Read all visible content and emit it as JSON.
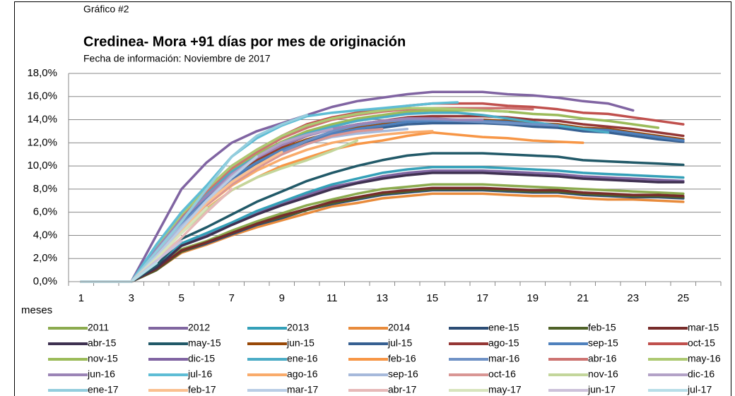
{
  "chart_data": {
    "type": "line",
    "kicker": "Gráfico #2",
    "title": "Credinea- Mora +91 días por mes de originación",
    "subtitle": "Fecha de información: Noviembre de 2017",
    "x_label": "meses",
    "categories": [
      1,
      null,
      3,
      null,
      5,
      null,
      7,
      null,
      9,
      null,
      11,
      null,
      13,
      null,
      15,
      null,
      17,
      null,
      19,
      null,
      21,
      null,
      23,
      null,
      25,
      null
    ],
    "ylim": [
      0,
      18
    ],
    "yticks": [
      {
        "value": 0,
        "label": "0,0%"
      },
      {
        "value": 2,
        "label": "2,0%"
      },
      {
        "value": 4,
        "label": "4,0%"
      },
      {
        "value": 6,
        "label": "6,0%"
      },
      {
        "value": 8,
        "label": "8,0%"
      },
      {
        "value": 10,
        "label": "10,0%"
      },
      {
        "value": 12,
        "label": "12,0%"
      },
      {
        "value": 14,
        "label": "14,0%"
      },
      {
        "value": 16,
        "label": "16,0%"
      },
      {
        "value": 18,
        "label": "18,0%"
      }
    ],
    "grid": true,
    "legend": "bottom",
    "series": [
      {
        "name": "2011",
        "color": "#8cab4f",
        "values": [
          0,
          0,
          0,
          1.1,
          2.8,
          3.5,
          4.4,
          5.2,
          5.9,
          6.6,
          7.1,
          7.6,
          8.0,
          8.2,
          8.4,
          8.4,
          8.4,
          8.3,
          8.2,
          8.1,
          8.0,
          7.9,
          7.8,
          7.7,
          7.6,
          null
        ]
      },
      {
        "name": "2012",
        "color": "#8066a0",
        "values": [
          0,
          0,
          0,
          1.2,
          3.2,
          4.0,
          5.0,
          6.0,
          6.7,
          7.5,
          8.2,
          8.6,
          9.1,
          9.4,
          9.6,
          9.6,
          9.6,
          9.5,
          9.4,
          9.3,
          9.1,
          9.0,
          8.9,
          8.8,
          8.7,
          null
        ]
      },
      {
        "name": "2013",
        "color": "#34a0b8",
        "values": [
          0,
          0,
          0,
          1.3,
          3.3,
          4.2,
          5.1,
          6.1,
          6.9,
          7.7,
          8.4,
          8.9,
          9.4,
          9.7,
          9.9,
          9.9,
          9.9,
          9.8,
          9.7,
          9.6,
          9.4,
          9.3,
          9.2,
          9.1,
          9.0,
          null
        ]
      },
      {
        "name": "2014",
        "color": "#e88b3c",
        "values": [
          0,
          0,
          0,
          1.0,
          2.5,
          3.2,
          4.0,
          4.7,
          5.3,
          5.9,
          6.5,
          6.8,
          7.2,
          7.4,
          7.6,
          7.6,
          7.6,
          7.5,
          7.4,
          7.4,
          7.2,
          7.1,
          7.1,
          7.0,
          6.9,
          null
        ]
      },
      {
        "name": "ene-15",
        "color": "#2c4d75",
        "values": [
          0,
          0,
          0,
          1.0,
          2.6,
          3.3,
          4.1,
          4.9,
          5.5,
          6.2,
          6.7,
          7.1,
          7.5,
          7.7,
          7.9,
          7.9,
          7.9,
          7.8,
          7.7,
          7.7,
          7.5,
          7.4,
          7.3,
          7.3,
          7.2,
          null
        ]
      },
      {
        "name": "feb-15",
        "color": "#4f6228",
        "values": [
          0,
          0,
          0,
          1.0,
          2.6,
          3.4,
          4.2,
          5.0,
          5.6,
          6.2,
          6.8,
          7.2,
          7.6,
          7.8,
          8.0,
          8.0,
          8.0,
          7.9,
          7.8,
          7.8,
          7.6,
          7.5,
          7.4,
          7.4,
          7.3,
          null
        ]
      },
      {
        "name": "mar-15",
        "color": "#772c2a",
        "values": [
          0,
          0,
          0,
          1.1,
          2.7,
          3.4,
          4.2,
          5.0,
          5.7,
          6.3,
          6.9,
          7.3,
          7.7,
          7.9,
          8.1,
          8.1,
          8.1,
          8.0,
          7.9,
          7.9,
          7.7,
          7.6,
          7.5,
          7.5,
          7.4,
          null
        ]
      },
      {
        "name": "abr-15",
        "color": "#3f3151",
        "values": [
          0,
          0,
          0,
          1.2,
          3.1,
          3.9,
          4.9,
          5.8,
          6.6,
          7.3,
          8.0,
          8.5,
          8.9,
          9.2,
          9.4,
          9.4,
          9.4,
          9.3,
          9.2,
          9.1,
          8.9,
          8.8,
          8.7,
          8.6,
          8.6,
          null
        ]
      },
      {
        "name": "may-15",
        "color": "#215968",
        "values": [
          0,
          0,
          0,
          1.4,
          3.7,
          4.7,
          5.8,
          6.9,
          7.8,
          8.7,
          9.4,
          10.0,
          10.5,
          10.9,
          11.1,
          11.1,
          11.1,
          11.0,
          10.9,
          10.8,
          10.5,
          10.4,
          10.3,
          10.2,
          10.1,
          null
        ]
      },
      {
        "name": "jun-15",
        "color": "#984807",
        "values": [
          0,
          0,
          0,
          2.8,
          5.3,
          7.3,
          9.1,
          10.4,
          11.5,
          12.3,
          12.9,
          13.3,
          13.6,
          13.9,
          14.0,
          14.0,
          14.0,
          13.9,
          13.7,
          13.6,
          13.3,
          13.2,
          12.9,
          12.6,
          12.3,
          null
        ]
      },
      {
        "name": "jul-15",
        "color": "#376092",
        "values": [
          0,
          0,
          0,
          2.7,
          5.2,
          7.1,
          8.9,
          10.1,
          11.2,
          12.1,
          12.6,
          13.0,
          13.3,
          13.6,
          13.7,
          13.7,
          13.7,
          13.6,
          13.4,
          13.3,
          13.0,
          12.9,
          12.6,
          12.3,
          12.1,
          null
        ]
      },
      {
        "name": "ago-15",
        "color": "#953735",
        "values": [
          0,
          0,
          0,
          2.9,
          5.4,
          7.4,
          9.3,
          10.6,
          11.7,
          12.6,
          13.2,
          13.6,
          13.9,
          14.2,
          14.3,
          14.3,
          14.3,
          14.2,
          14.0,
          13.9,
          13.6,
          13.4,
          13.2,
          12.9,
          12.6,
          null
        ]
      },
      {
        "name": "sep-15",
        "color": "#4f81bd",
        "values": [
          0,
          0,
          0,
          2.8,
          5.3,
          7.2,
          9.0,
          10.3,
          11.4,
          12.2,
          12.8,
          13.2,
          13.5,
          13.8,
          13.9,
          13.9,
          13.9,
          13.8,
          13.6,
          13.5,
          13.2,
          13.1,
          12.8,
          12.5,
          12.2,
          null
        ]
      },
      {
        "name": "oct-15",
        "color": "#c0504d",
        "values": [
          0,
          0,
          0,
          3.1,
          5.9,
          8.0,
          10.0,
          11.4,
          12.6,
          13.6,
          14.2,
          14.6,
          14.9,
          15.2,
          15.4,
          15.4,
          15.4,
          15.2,
          15.1,
          14.9,
          14.6,
          14.5,
          14.2,
          13.9,
          13.6,
          null
        ]
      },
      {
        "name": "nov-15",
        "color": "#9bbb59",
        "values": [
          0,
          0,
          0,
          3.0,
          5.6,
          7.7,
          9.6,
          11.0,
          12.1,
          13.0,
          13.6,
          14.1,
          14.4,
          14.7,
          14.8,
          14.8,
          14.8,
          14.7,
          14.5,
          14.4,
          14.1,
          13.9,
          13.6,
          13.3,
          null,
          null
        ]
      },
      {
        "name": "dic-15",
        "color": "#8064a2",
        "values": [
          0,
          0,
          0,
          4.0,
          8.0,
          10.3,
          12.0,
          13.0,
          13.7,
          14.4,
          15.1,
          15.6,
          15.9,
          16.2,
          16.4,
          16.4,
          16.4,
          16.2,
          16.1,
          15.9,
          15.6,
          15.4,
          14.8,
          null,
          null,
          null
        ]
      },
      {
        "name": "ene-16",
        "color": "#4bacc6",
        "values": [
          0,
          0,
          0,
          2.9,
          5.5,
          7.6,
          9.5,
          10.8,
          12.0,
          12.8,
          13.4,
          13.9,
          14.2,
          14.5,
          14.6,
          14.6,
          14.4,
          14.1,
          13.8,
          13.5,
          13.2,
          12.9,
          null,
          null,
          null,
          null
        ]
      },
      {
        "name": "feb-16",
        "color": "#f79646",
        "values": [
          0,
          0,
          0,
          2.2,
          4.5,
          6.3,
          7.9,
          9.0,
          10.0,
          10.7,
          11.4,
          11.9,
          12.2,
          12.6,
          12.9,
          12.7,
          12.5,
          12.4,
          12.2,
          12.1,
          12.0,
          null,
          null,
          null,
          null,
          null
        ]
      },
      {
        "name": "mar-16",
        "color": "#6f92c6",
        "values": [
          0,
          0,
          0,
          2.6,
          5.0,
          7.0,
          8.7,
          10.0,
          11.2,
          12.2,
          13.0,
          13.5,
          13.8,
          14.0,
          14.0,
          13.9,
          13.8,
          13.7,
          13.6,
          13.5,
          null,
          null,
          null,
          null,
          null,
          null
        ]
      },
      {
        "name": "abr-16",
        "color": "#cd7371",
        "values": [
          0,
          0,
          0,
          3.0,
          5.7,
          7.8,
          9.8,
          11.2,
          12.4,
          13.3,
          14.0,
          14.4,
          14.7,
          14.9,
          15.0,
          15.0,
          15.0,
          15.0,
          14.9,
          null,
          null,
          null,
          null,
          null,
          null,
          null
        ]
      },
      {
        "name": "may-16",
        "color": "#adc972",
        "values": [
          0,
          0,
          0,
          3.0,
          5.8,
          8.0,
          10.0,
          11.4,
          12.6,
          13.5,
          14.1,
          14.5,
          14.8,
          15.0,
          15.0,
          14.9,
          14.8,
          14.7,
          null,
          null,
          null,
          null,
          null,
          null,
          null,
          null
        ]
      },
      {
        "name": "jun-16",
        "color": "#9b84b6",
        "values": [
          0,
          0,
          0,
          2.8,
          5.4,
          7.4,
          9.3,
          10.7,
          11.8,
          12.6,
          13.2,
          13.6,
          13.9,
          14.1,
          14.1,
          14.0,
          14.0,
          null,
          null,
          null,
          null,
          null,
          null,
          null,
          null,
          null
        ]
      },
      {
        "name": "jul-16",
        "color": "#5ebdd5",
        "values": [
          0,
          0,
          0,
          3.2,
          6.0,
          8.3,
          10.8,
          12.4,
          13.5,
          14.3,
          14.6,
          14.8,
          15.0,
          15.2,
          15.4,
          15.5,
          null,
          null,
          null,
          null,
          null,
          null,
          null,
          null,
          null,
          null
        ]
      },
      {
        "name": "ago-16",
        "color": "#f9ab6b",
        "values": [
          0,
          0,
          0,
          2.4,
          4.7,
          6.6,
          8.3,
          9.6,
          10.6,
          11.4,
          12.0,
          12.4,
          12.7,
          12.9,
          13.0,
          null,
          null,
          null,
          null,
          null,
          null,
          null,
          null,
          null,
          null,
          null
        ]
      },
      {
        "name": "sep-16",
        "color": "#a6b9db",
        "values": [
          0,
          0,
          0,
          2.5,
          4.8,
          6.8,
          8.6,
          10.0,
          11.0,
          11.9,
          12.5,
          12.8,
          13.0,
          13.2,
          null,
          null,
          null,
          null,
          null,
          null,
          null,
          null,
          null,
          null,
          null,
          null
        ]
      },
      {
        "name": "oct-16",
        "color": "#d99694",
        "values": [
          0,
          0,
          0,
          2.2,
          4.6,
          6.6,
          8.4,
          9.8,
          11.0,
          11.9,
          12.6,
          13.0,
          13.2,
          null,
          null,
          null,
          null,
          null,
          null,
          null,
          null,
          null,
          null,
          null,
          null,
          null
        ]
      },
      {
        "name": "nov-16",
        "color": "#c3d69b",
        "values": [
          0,
          0,
          0,
          2.0,
          4.2,
          6.2,
          7.9,
          9.0,
          9.8,
          10.5,
          11.3,
          12.2,
          null,
          null,
          null,
          null,
          null,
          null,
          null,
          null,
          null,
          null,
          null,
          null,
          null,
          null
        ]
      },
      {
        "name": "dic-16",
        "color": "#b3a2c7",
        "values": [
          0,
          0,
          0,
          2.3,
          4.6,
          7.0,
          9.2,
          10.8,
          12.0,
          12.7,
          13.2,
          null,
          null,
          null,
          null,
          null,
          null,
          null,
          null,
          null,
          null,
          null,
          null,
          null,
          null,
          null
        ]
      },
      {
        "name": "ene-17",
        "color": "#93cddd",
        "values": [
          0,
          0,
          0,
          2.6,
          5.2,
          8.0,
          10.8,
          12.6,
          13.6,
          14.4,
          null,
          null,
          null,
          null,
          null,
          null,
          null,
          null,
          null,
          null,
          null,
          null,
          null,
          null,
          null,
          null
        ]
      },
      {
        "name": "feb-17",
        "color": "#fac090",
        "values": [
          0,
          0,
          0,
          2.1,
          4.4,
          6.8,
          8.6,
          10.0,
          11.2,
          null,
          null,
          null,
          null,
          null,
          null,
          null,
          null,
          null,
          null,
          null,
          null,
          null,
          null,
          null,
          null,
          null
        ]
      },
      {
        "name": "mar-17",
        "color": "#b9cde5",
        "values": [
          0,
          0,
          0,
          2.2,
          4.6,
          7.0,
          9.0,
          10.8,
          null,
          null,
          null,
          null,
          null,
          null,
          null,
          null,
          null,
          null,
          null,
          null,
          null,
          null,
          null,
          null,
          null,
          null
        ]
      },
      {
        "name": "abr-17",
        "color": "#e6b9b8",
        "values": [
          0,
          0,
          0,
          1.9,
          3.8,
          6.0,
          8.0,
          null,
          null,
          null,
          null,
          null,
          null,
          null,
          null,
          null,
          null,
          null,
          null,
          null,
          null,
          null,
          null,
          null,
          null,
          null
        ]
      },
      {
        "name": "may-17",
        "color": "#d7e4bd",
        "values": [
          0,
          0,
          0,
          2.0,
          4.2,
          6.4,
          null,
          null,
          null,
          null,
          null,
          null,
          null,
          null,
          null,
          null,
          null,
          null,
          null,
          null,
          null,
          null,
          null,
          null,
          null,
          null
        ]
      },
      {
        "name": "jun-17",
        "color": "#ccc1da",
        "values": [
          0,
          0,
          0,
          1.8,
          3.5,
          null,
          null,
          null,
          null,
          null,
          null,
          null,
          null,
          null,
          null,
          null,
          null,
          null,
          null,
          null,
          null,
          null,
          null,
          null,
          null,
          null
        ]
      },
      {
        "name": "jul-17",
        "color": "#b7dee8",
        "values": [
          0,
          0,
          0,
          1.6,
          null,
          null,
          null,
          null,
          null,
          null,
          null,
          null,
          null,
          null,
          null,
          null,
          null,
          null,
          null,
          null,
          null,
          null,
          null,
          null,
          null,
          null
        ]
      }
    ]
  }
}
